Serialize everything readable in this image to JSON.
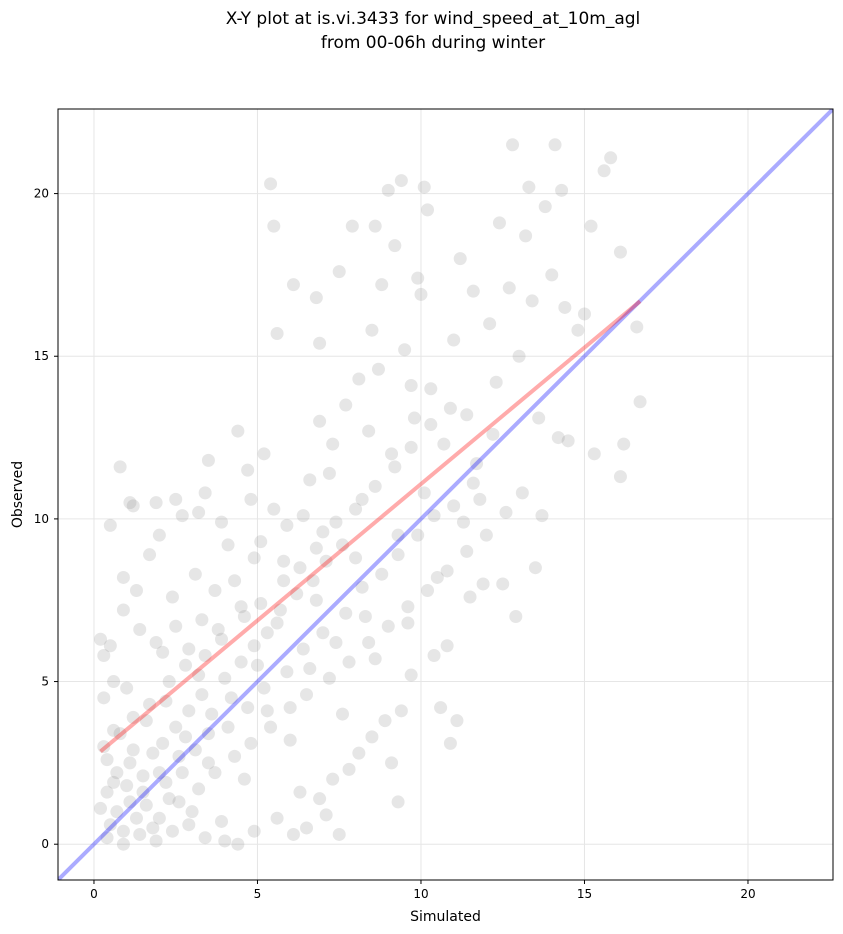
{
  "chart_data": {
    "type": "scatter",
    "title": [
      "X-Y plot at is.vi.3433 for wind_speed_at_10m_agl",
      "from 00-06h during winter"
    ],
    "xlabel": "Simulated",
    "ylabel": "Observed",
    "xlim": [
      -1.1,
      22.6
    ],
    "ylim": [
      -1.1,
      22.6
    ],
    "xticks": [
      0,
      5,
      10,
      15,
      20
    ],
    "yticks": [
      0,
      5,
      10,
      15,
      20
    ],
    "grid": true,
    "point_color": "#808080",
    "points": [
      [
        0.5,
        0.6
      ],
      [
        0.7,
        1.0
      ],
      [
        0.9,
        0.4
      ],
      [
        1.1,
        1.3
      ],
      [
        1.3,
        0.8
      ],
      [
        0.6,
        1.9
      ],
      [
        1.5,
        1.6
      ],
      [
        1.8,
        0.5
      ],
      [
        2.0,
        2.2
      ],
      [
        0.4,
        2.6
      ],
      [
        1.2,
        2.9
      ],
      [
        2.3,
        1.4
      ],
      [
        0.8,
        3.4
      ],
      [
        1.6,
        3.8
      ],
      [
        2.6,
        2.7
      ],
      [
        0.3,
        4.5
      ],
      [
        1.0,
        4.8
      ],
      [
        2.2,
        4.4
      ],
      [
        2.8,
        3.3
      ],
      [
        3.0,
        1.0
      ],
      [
        0.5,
        6.1
      ],
      [
        1.4,
        6.6
      ],
      [
        2.1,
        5.9
      ],
      [
        3.2,
        5.2
      ],
      [
        3.5,
        2.5
      ],
      [
        0.9,
        8.2
      ],
      [
        1.7,
        8.9
      ],
      [
        2.4,
        7.6
      ],
      [
        3.1,
        8.3
      ],
      [
        3.8,
        6.6
      ],
      [
        0.8,
        11.6
      ],
      [
        1.2,
        10.4
      ],
      [
        2.0,
        9.5
      ],
      [
        2.7,
        10.1
      ],
      [
        3.4,
        10.8
      ],
      [
        4.1,
        9.2
      ],
      [
        4.5,
        7.3
      ],
      [
        4.2,
        4.5
      ],
      [
        4.6,
        2.0
      ],
      [
        4.0,
        0.1
      ],
      [
        5.0,
        5.5
      ],
      [
        5.3,
        4.1
      ],
      [
        5.6,
        6.8
      ],
      [
        5.8,
        8.7
      ],
      [
        5.5,
        10.3
      ],
      [
        5.2,
        12.0
      ],
      [
        6.0,
        3.2
      ],
      [
        6.3,
        1.6
      ],
      [
        6.1,
        0.3
      ],
      [
        5.4,
        20.3
      ],
      [
        5.5,
        19.0
      ],
      [
        6.6,
        5.4
      ],
      [
        6.8,
        7.5
      ],
      [
        7.0,
        9.6
      ],
      [
        7.2,
        11.4
      ],
      [
        6.9,
        13.0
      ],
      [
        7.4,
        6.2
      ],
      [
        7.6,
        4.0
      ],
      [
        7.8,
        2.3
      ],
      [
        7.5,
        0.3
      ],
      [
        7.1,
        0.9
      ],
      [
        8.0,
        8.8
      ],
      [
        8.2,
        10.6
      ],
      [
        8.4,
        12.7
      ],
      [
        8.1,
        14.3
      ],
      [
        8.5,
        15.8
      ],
      [
        8.6,
        5.7
      ],
      [
        8.9,
        3.8
      ],
      [
        8.3,
        7.0
      ],
      [
        8.8,
        17.2
      ],
      [
        9.1,
        12.0
      ],
      [
        9.3,
        9.5
      ],
      [
        9.5,
        15.2
      ],
      [
        9.2,
        18.4
      ],
      [
        9.6,
        6.8
      ],
      [
        9.4,
        20.4
      ],
      [
        9.8,
        13.1
      ],
      [
        9.0,
        20.1
      ],
      [
        9.9,
        17.4
      ],
      [
        9.3,
        1.3
      ],
      [
        10.1,
        10.8
      ],
      [
        10.3,
        14.0
      ],
      [
        10.0,
        16.9
      ],
      [
        10.5,
        8.2
      ],
      [
        10.2,
        19.5
      ],
      [
        10.7,
        12.3
      ],
      [
        10.6,
        4.2
      ],
      [
        10.8,
        6.1
      ],
      [
        10.1,
        20.2
      ],
      [
        10.9,
        3.1
      ],
      [
        11.2,
        18.0
      ],
      [
        11.0,
        15.5
      ],
      [
        11.4,
        13.2
      ],
      [
        11.3,
        9.9
      ],
      [
        11.5,
        7.6
      ],
      [
        11.6,
        17.0
      ],
      [
        11.8,
        10.6
      ],
      [
        11.1,
        3.8
      ],
      [
        11.9,
        8.0
      ],
      [
        11.7,
        11.7
      ],
      [
        12.1,
        16.0
      ],
      [
        12.3,
        14.2
      ],
      [
        12.2,
        12.6
      ],
      [
        12.5,
        8.0
      ],
      [
        12.4,
        19.1
      ],
      [
        12.7,
        17.1
      ],
      [
        12.8,
        21.5
      ],
      [
        13.0,
        15.0
      ],
      [
        12.9,
        7.0
      ],
      [
        13.2,
        18.7
      ],
      [
        13.3,
        20.2
      ],
      [
        13.4,
        16.7
      ],
      [
        13.6,
        13.1
      ],
      [
        13.5,
        8.5
      ],
      [
        13.8,
        19.6
      ],
      [
        13.7,
        10.1
      ],
      [
        14.1,
        21.5
      ],
      [
        14.0,
        17.5
      ],
      [
        14.2,
        12.5
      ],
      [
        14.3,
        20.1
      ],
      [
        14.4,
        16.5
      ],
      [
        14.5,
        12.4
      ],
      [
        14.8,
        15.8
      ],
      [
        15.0,
        16.3
      ],
      [
        15.2,
        19.0
      ],
      [
        15.3,
        12.0
      ],
      [
        15.6,
        20.7
      ],
      [
        15.8,
        21.1
      ],
      [
        16.1,
        18.2
      ],
      [
        16.2,
        12.3
      ],
      [
        16.1,
        11.3
      ],
      [
        16.6,
        15.9
      ],
      [
        16.7,
        13.6
      ],
      [
        6.1,
        17.2
      ],
      [
        5.6,
        15.7
      ],
      [
        6.8,
        16.8
      ],
      [
        7.5,
        17.6
      ],
      [
        7.9,
        19.0
      ],
      [
        8.6,
        19.0
      ],
      [
        6.9,
        15.4
      ],
      [
        3.2,
        10.2
      ],
      [
        3.5,
        11.8
      ],
      [
        4.4,
        12.7
      ],
      [
        4.7,
        11.5
      ],
      [
        2.5,
        10.6
      ],
      [
        1.9,
        10.5
      ],
      [
        3.9,
        9.9
      ],
      [
        4.8,
        10.6
      ],
      [
        0.5,
        9.8
      ],
      [
        1.1,
        10.5
      ],
      [
        0.2,
        6.3
      ],
      [
        0.3,
        5.8
      ],
      [
        0.6,
        5.0
      ],
      [
        0.9,
        7.2
      ],
      [
        1.3,
        7.8
      ],
      [
        1.9,
        6.2
      ],
      [
        2.5,
        6.7
      ],
      [
        2.9,
        6.0
      ],
      [
        3.3,
        6.9
      ],
      [
        3.7,
        7.8
      ],
      [
        4.3,
        8.1
      ],
      [
        4.9,
        8.8
      ],
      [
        5.1,
        9.3
      ],
      [
        5.9,
        9.8
      ],
      [
        6.4,
        10.1
      ],
      [
        6.6,
        11.2
      ],
      [
        7.3,
        12.3
      ],
      [
        7.7,
        13.5
      ],
      [
        8.7,
        14.6
      ],
      [
        9.7,
        14.1
      ],
      [
        0.4,
        0.2
      ],
      [
        0.9,
        0.0
      ],
      [
        1.4,
        0.3
      ],
      [
        1.9,
        0.1
      ],
      [
        2.4,
        0.4
      ],
      [
        2.9,
        0.6
      ],
      [
        3.4,
        0.2
      ],
      [
        3.9,
        0.7
      ],
      [
        4.4,
        0.0
      ],
      [
        4.9,
        0.4
      ],
      [
        5.6,
        0.8
      ],
      [
        6.5,
        0.5
      ],
      [
        6.9,
        1.4
      ],
      [
        7.3,
        2.0
      ],
      [
        8.1,
        2.8
      ],
      [
        8.5,
        3.3
      ],
      [
        9.1,
        2.5
      ],
      [
        9.4,
        4.1
      ],
      [
        9.7,
        5.2
      ],
      [
        10.4,
        5.8
      ],
      [
        0.2,
        1.1
      ],
      [
        0.4,
        1.6
      ],
      [
        0.7,
        2.2
      ],
      [
        1.1,
        2.5
      ],
      [
        1.5,
        2.1
      ],
      [
        1.8,
        2.8
      ],
      [
        2.1,
        3.1
      ],
      [
        2.5,
        3.6
      ],
      [
        2.9,
        4.1
      ],
      [
        3.3,
        4.6
      ],
      [
        3.6,
        4.0
      ],
      [
        4.0,
        5.1
      ],
      [
        4.5,
        5.6
      ],
      [
        4.9,
        6.1
      ],
      [
        5.3,
        6.5
      ],
      [
        5.7,
        7.2
      ],
      [
        6.2,
        7.7
      ],
      [
        6.7,
        8.1
      ],
      [
        7.1,
        8.7
      ],
      [
        7.6,
        9.2
      ],
      [
        1.0,
        1.8
      ],
      [
        1.6,
        1.2
      ],
      [
        2.2,
        1.9
      ],
      [
        2.7,
        2.2
      ],
      [
        3.1,
        2.9
      ],
      [
        3.5,
        3.4
      ],
      [
        4.1,
        3.6
      ],
      [
        4.7,
        4.2
      ],
      [
        5.2,
        4.8
      ],
      [
        5.9,
        5.3
      ],
      [
        6.4,
        6.0
      ],
      [
        7.0,
        6.5
      ],
      [
        7.7,
        7.1
      ],
      [
        8.2,
        7.9
      ],
      [
        8.8,
        8.3
      ],
      [
        9.3,
        8.9
      ],
      [
        9.9,
        9.5
      ],
      [
        10.4,
        10.1
      ],
      [
        11.0,
        10.4
      ],
      [
        11.6,
        11.1
      ],
      [
        0.3,
        3.0
      ],
      [
        0.6,
        3.5
      ],
      [
        1.2,
        3.9
      ],
      [
        1.7,
        4.3
      ],
      [
        2.3,
        5.0
      ],
      [
        2.8,
        5.5
      ],
      [
        3.4,
        5.8
      ],
      [
        3.9,
        6.3
      ],
      [
        4.6,
        7.0
      ],
      [
        5.1,
        7.4
      ],
      [
        5.8,
        8.1
      ],
      [
        6.3,
        8.5
      ],
      [
        6.8,
        9.1
      ],
      [
        7.4,
        9.9
      ],
      [
        8.0,
        10.3
      ],
      [
        8.6,
        11.0
      ],
      [
        9.2,
        11.6
      ],
      [
        9.7,
        12.2
      ],
      [
        10.3,
        12.9
      ],
      [
        10.9,
        13.4
      ],
      [
        2.0,
        0.8
      ],
      [
        2.6,
        1.3
      ],
      [
        3.2,
        1.7
      ],
      [
        3.7,
        2.2
      ],
      [
        4.3,
        2.7
      ],
      [
        4.8,
        3.1
      ],
      [
        5.4,
        3.6
      ],
      [
        6.0,
        4.2
      ],
      [
        6.5,
        4.6
      ],
      [
        7.2,
        5.1
      ],
      [
        7.8,
        5.6
      ],
      [
        8.4,
        6.2
      ],
      [
        9.0,
        6.7
      ],
      [
        9.6,
        7.3
      ],
      [
        10.2,
        7.8
      ],
      [
        10.8,
        8.4
      ],
      [
        11.4,
        9.0
      ],
      [
        12.0,
        9.5
      ],
      [
        12.6,
        10.2
      ],
      [
        13.1,
        10.8
      ]
    ]
  }
}
